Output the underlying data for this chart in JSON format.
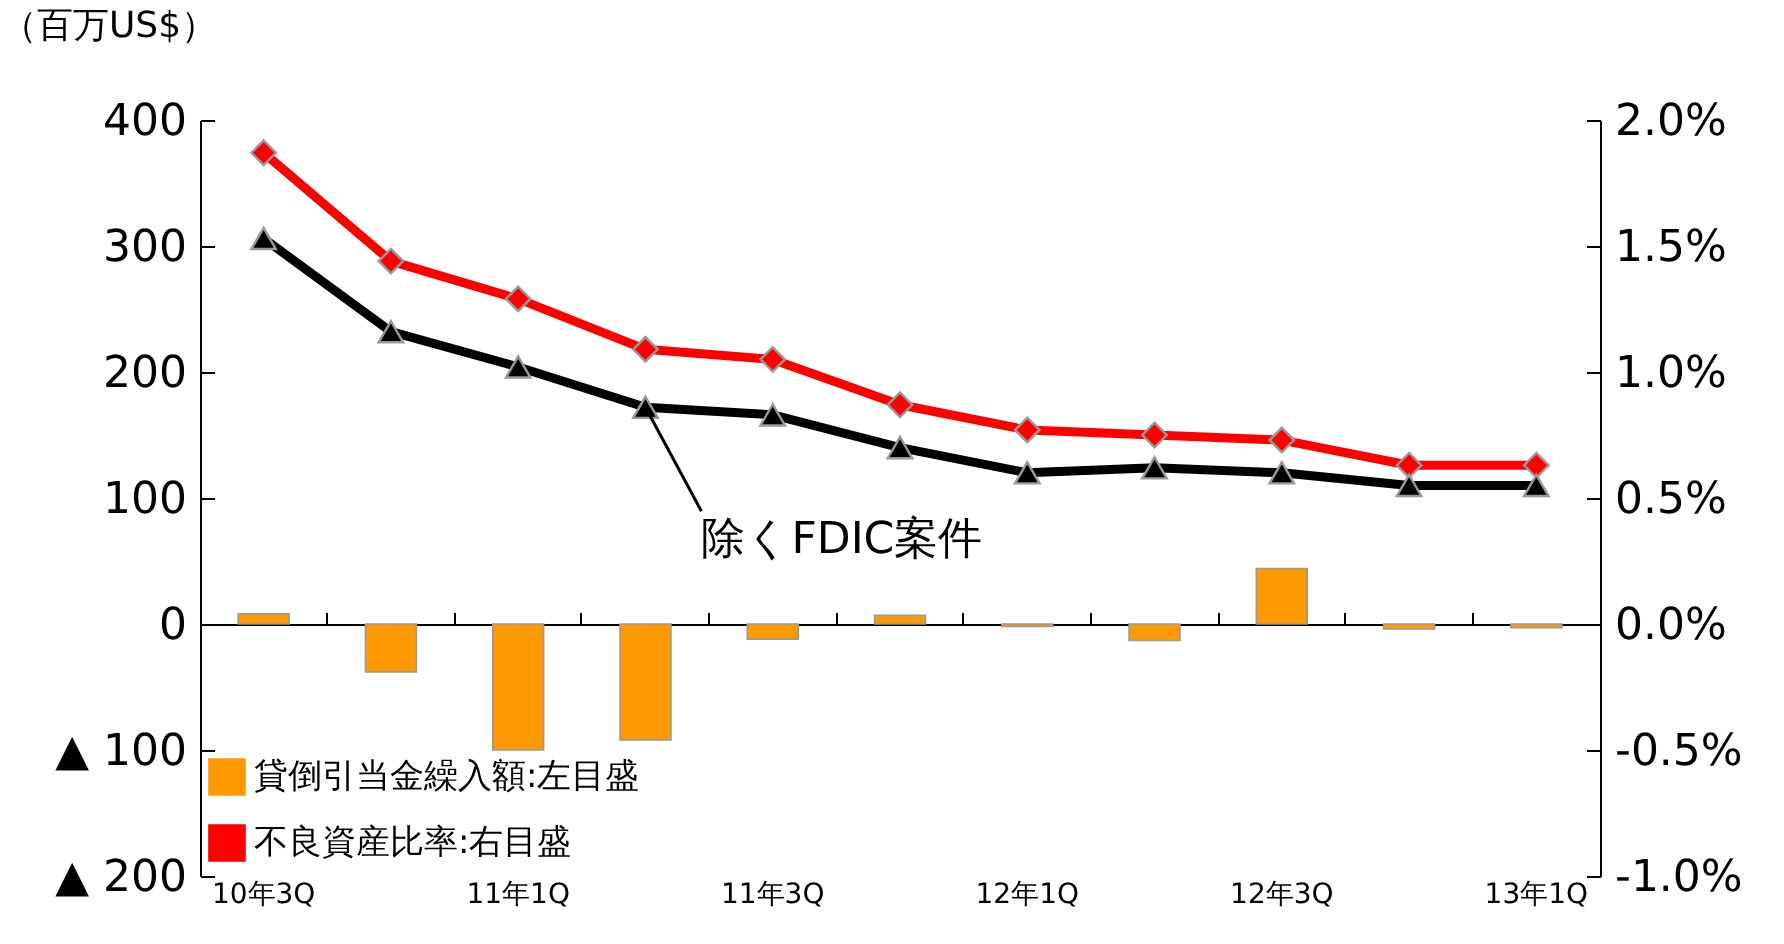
{
  "chart_data": {
    "type": "bar",
    "ylabel": "（百万US$）",
    "categories": [
      "10年3Q",
      null,
      "11年1Q",
      null,
      "11年3Q",
      null,
      "12年1Q",
      null,
      "12年3Q",
      null,
      "13年1Q"
    ],
    "series": [
      {
        "name": "貸倒引当金繰入額:左目盛",
        "axis": "y",
        "color": "#ff9900",
        "values": [
          8,
          -38,
          -100,
          -92,
          -12,
          7,
          -2,
          -13,
          44,
          -4,
          -3
        ]
      },
      {
        "name": "不良資産比率:右目盛",
        "type": "line",
        "axis": "y2",
        "color": "#ff0000",
        "marker": "diamond",
        "values": [
          1.87,
          1.44,
          1.29,
          1.09,
          1.05,
          0.87,
          0.77,
          0.75,
          0.73,
          0.63,
          0.63
        ]
      },
      {
        "name": "除くFDIC案件",
        "type": "line",
        "axis": "y2",
        "color": "#000000",
        "marker": "triangle",
        "values": [
          1.53,
          1.16,
          1.02,
          0.86,
          0.83,
          0.7,
          0.6,
          0.62,
          0.6,
          0.55,
          0.55
        ]
      }
    ],
    "ylim": [
      -200,
      400
    ],
    "yticks": [
      {
        "value": -200,
        "label": "▲ 200"
      },
      {
        "value": -100,
        "label": "▲ 100"
      },
      0,
      100,
      200,
      300,
      400
    ],
    "y2lim": [
      -1.0,
      2.0
    ],
    "y2ticks": [
      {
        "value": -1.0,
        "label": "-1.0%"
      },
      {
        "value": -0.5,
        "label": "-0.5%"
      },
      {
        "value": 0,
        "label": "0.0%"
      },
      {
        "value": 0.5,
        "label": "0.5%"
      },
      {
        "value": 1.0,
        "label": "1.0%"
      },
      {
        "value": 1.5,
        "label": "1.5%"
      },
      {
        "value": 2.0,
        "label": "2.0%"
      }
    ],
    "legend": "bottom left"
  }
}
